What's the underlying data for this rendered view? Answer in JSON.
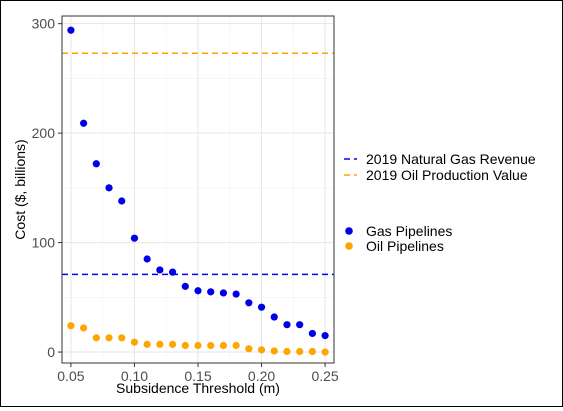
{
  "chart_data": {
    "type": "scatter",
    "title": "",
    "xlabel": "Subsidence Threshold (m)",
    "ylabel": "Cost ($, billions)",
    "xlim": [
      0.043,
      0.257
    ],
    "ylim": [
      -10,
      307
    ],
    "x_ticks": [
      "0.05",
      "0.10",
      "0.15",
      "0.20",
      "0.25"
    ],
    "x_tick_values": [
      0.05,
      0.1,
      0.15,
      0.2,
      0.25
    ],
    "y_ticks": [
      "0",
      "100",
      "200",
      "300"
    ],
    "y_tick_values": [
      0,
      100,
      200,
      300
    ],
    "grid": true,
    "legend_position": "right",
    "hlines": [
      {
        "name": "2019 Natural Gas Revenue",
        "value": 71,
        "color": "#0000ff"
      },
      {
        "name": "2019 Oil Production Value",
        "value": 273,
        "color": "#ffa500"
      }
    ],
    "series": [
      {
        "name": "Gas Pipelines",
        "color": "#0000e6",
        "x": [
          0.05,
          0.06,
          0.07,
          0.08,
          0.09,
          0.1,
          0.11,
          0.12,
          0.13,
          0.14,
          0.15,
          0.16,
          0.17,
          0.18,
          0.19,
          0.2,
          0.21,
          0.22,
          0.23,
          0.24,
          0.25
        ],
        "y": [
          294,
          209,
          172,
          150,
          138,
          104,
          85,
          75,
          73,
          60,
          56,
          55,
          54,
          53,
          45,
          41,
          32,
          25,
          25,
          17,
          15
        ]
      },
      {
        "name": "Oil Pipelines",
        "color": "#ffa500",
        "x": [
          0.05,
          0.06,
          0.07,
          0.08,
          0.09,
          0.1,
          0.11,
          0.12,
          0.13,
          0.14,
          0.15,
          0.16,
          0.17,
          0.18,
          0.19,
          0.2,
          0.21,
          0.22,
          0.23,
          0.24,
          0.25
        ],
        "y": [
          24,
          22,
          13,
          13,
          13,
          9,
          7,
          7,
          7,
          6,
          6,
          6,
          6,
          6,
          3,
          2,
          1,
          0.5,
          0.5,
          0.5,
          0
        ]
      }
    ]
  }
}
